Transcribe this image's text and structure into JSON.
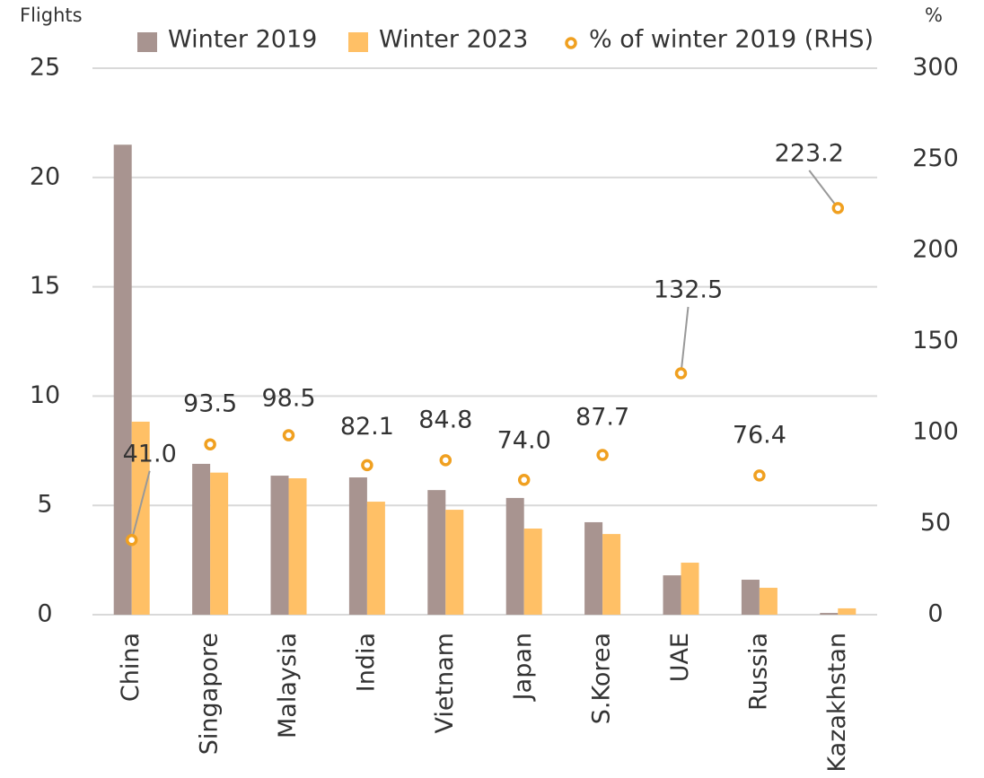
{
  "chart_data": {
    "type": "bar",
    "y_axis_label": "Flights",
    "y2_axis_label": "%",
    "categories": [
      "China",
      "Singapore",
      "Malaysia",
      "India",
      "Vietnam",
      "Japan",
      "S.Korea",
      "UAE",
      "Russia",
      "Kazakhstan"
    ],
    "series": [
      {
        "name": "Winter 2019",
        "type": "bar",
        "color": "#a89490",
        "values": [
          21.5,
          6.9,
          6.36,
          6.28,
          5.7,
          5.34,
          4.23,
          1.8,
          1.6,
          0.08
        ]
      },
      {
        "name": "Winter 2023",
        "type": "bar",
        "color": "#ffc066",
        "values": [
          8.83,
          6.5,
          6.24,
          5.17,
          4.8,
          3.94,
          3.69,
          2.38,
          1.23,
          0.29
        ]
      },
      {
        "name": "% of winter 2019 (RHS)",
        "type": "scatter",
        "axis": "y2",
        "color": "#f0a020",
        "values": [
          41.0,
          93.5,
          98.5,
          82.1,
          84.8,
          74.0,
          87.7,
          132.5,
          76.4,
          223.2
        ],
        "value_labels": [
          "41.0",
          "93.5",
          "98.5",
          "82.1",
          "84.8",
          "74.0",
          "87.7",
          "132.5",
          "76.4",
          "223.2"
        ]
      }
    ],
    "ylim": [
      0,
      25
    ],
    "yticks": [
      0,
      5,
      10,
      15,
      20,
      25
    ],
    "y2lim": [
      0,
      300
    ],
    "y2ticks": [
      0,
      50,
      100,
      150,
      200,
      250,
      300
    ],
    "grid": true,
    "legend": "top"
  }
}
